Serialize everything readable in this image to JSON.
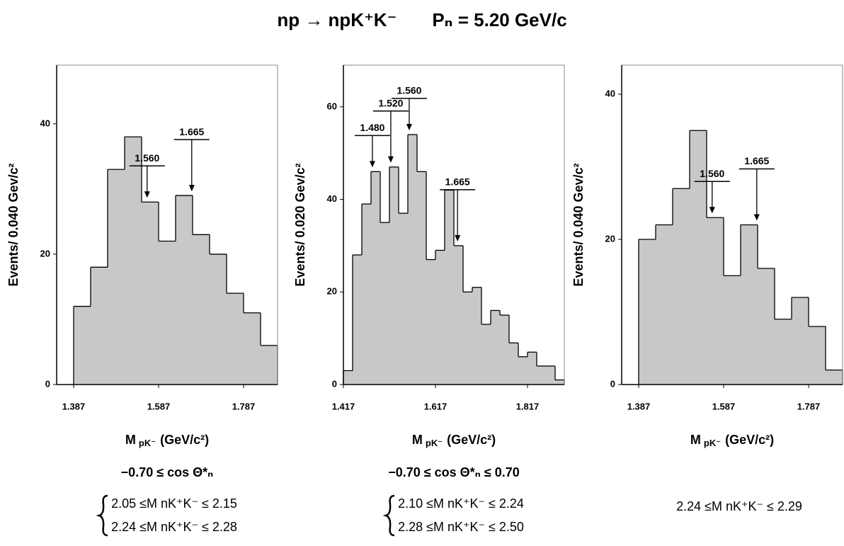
{
  "title": [
    "np → npK⁺K⁻",
    "Pₙ = 5.20 GeV/c"
  ],
  "chart_data": [
    {
      "type": "histogram",
      "color": "#c8c8c8",
      "bins": [
        1.387,
        1.427,
        1.467,
        1.507,
        1.547,
        1.587,
        1.627,
        1.667,
        1.707,
        1.747,
        1.787,
        1.827,
        1.867
      ],
      "values": [
        12,
        18,
        33,
        38,
        28,
        22,
        29,
        23,
        20,
        14,
        11,
        6
      ],
      "xlim": [
        1.347,
        1.867
      ],
      "xticks": [
        1.387,
        1.587,
        1.787
      ],
      "ylim": [
        0,
        49
      ],
      "yticks": [
        0,
        20,
        40
      ],
      "ylabel": "Events/ 0.040 Gev/c²",
      "xlabel": "M",
      "xlabel_sub": "pK⁻",
      "xlabel_unit": "(GeV/c²)",
      "peaks": [
        {
          "value": 1.56,
          "label": "1.560"
        },
        {
          "value": 1.665,
          "label": "1.665"
        }
      ],
      "angle_cut": "−0.70  ≤ cos  Θ*ₙ",
      "mass_cuts": [
        "2.05 ≤M nK⁺K⁻ ≤ 2.15",
        "2.24 ≤M nK⁺K⁻ ≤ 2.28"
      ]
    },
    {
      "type": "histogram",
      "color": "#c8c8c8",
      "bins": [
        1.417,
        1.437,
        1.457,
        1.477,
        1.497,
        1.517,
        1.537,
        1.557,
        1.577,
        1.597,
        1.617,
        1.637,
        1.657,
        1.677,
        1.697,
        1.717,
        1.737,
        1.757,
        1.777,
        1.797,
        1.817,
        1.837,
        1.857,
        1.877,
        1.897
      ],
      "values": [
        3,
        28,
        39,
        46,
        35,
        47,
        37,
        54,
        46,
        27,
        29,
        42,
        30,
        20,
        21,
        13,
        16,
        15,
        9,
        6,
        7,
        4,
        4,
        1
      ],
      "xlim": [
        1.417,
        1.897
      ],
      "xticks": [
        1.417,
        1.617,
        1.817
      ],
      "ylim": [
        0,
        69
      ],
      "yticks": [
        0,
        20,
        40,
        60
      ],
      "ylabel": "Events/ 0.020 Gev/c²",
      "xlabel": "M",
      "xlabel_sub": "pK⁻",
      "xlabel_unit": "(GeV/c²)",
      "peaks": [
        {
          "value": 1.48,
          "label": "1.480"
        },
        {
          "value": 1.52,
          "label": "1.520"
        },
        {
          "value": 1.56,
          "label": "1.560"
        },
        {
          "value": 1.665,
          "label": "1.665"
        }
      ],
      "angle_cut": "−0.70  ≤ cos  Θ*ₙ ≤ 0.70",
      "mass_cuts": [
        "2.10 ≤M nK⁺K⁻ ≤ 2.24",
        "2.28 ≤M nK⁺K⁻ ≤ 2.50"
      ]
    },
    {
      "type": "histogram",
      "color": "#c8c8c8",
      "bins": [
        1.387,
        1.427,
        1.467,
        1.507,
        1.547,
        1.587,
        1.627,
        1.667,
        1.707,
        1.747,
        1.787,
        1.827,
        1.867
      ],
      "values": [
        20,
        22,
        27,
        35,
        23,
        15,
        22,
        16,
        9,
        12,
        8,
        2
      ],
      "xlim": [
        1.347,
        1.867
      ],
      "xticks": [
        1.387,
        1.587,
        1.787
      ],
      "ylim": [
        0,
        44
      ],
      "yticks": [
        0,
        20,
        40
      ],
      "ylabel": "Events/ 0.040 Gev/c²",
      "xlabel": "M",
      "xlabel_sub": "pK⁻",
      "xlabel_unit": "(GeV/c²)",
      "peaks": [
        {
          "value": 1.56,
          "label": "1.560"
        },
        {
          "value": 1.665,
          "label": "1.665"
        }
      ],
      "mass_cuts": [
        "2.24 ≤M nK⁺K⁻ ≤ 2.29"
      ]
    }
  ]
}
